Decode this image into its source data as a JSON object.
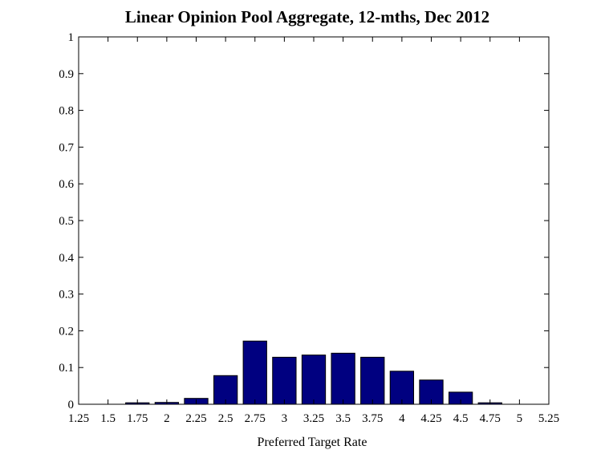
{
  "chart_data": {
    "type": "bar",
    "title": "Linear Opinion Pool Aggregate, 12-mths, Dec 2012",
    "xlabel": "Preferred Target Rate",
    "ylabel": "",
    "xlim": [
      1.25,
      5.25
    ],
    "ylim": [
      0,
      1
    ],
    "x_ticks": [
      "1.25",
      "1.5",
      "1.75",
      "2",
      "2.25",
      "2.5",
      "2.75",
      "3",
      "3.25",
      "3.5",
      "3.75",
      "4",
      "4.25",
      "4.5",
      "4.75",
      "5",
      "5.25"
    ],
    "y_ticks": [
      "0",
      "0.1",
      "0.2",
      "0.3",
      "0.4",
      "0.5",
      "0.6",
      "0.7",
      "0.8",
      "0.9",
      "1"
    ],
    "categories": [
      1.75,
      2,
      2.25,
      2.5,
      2.75,
      3,
      3.25,
      3.5,
      3.75,
      4,
      4.25,
      4.5,
      4.75
    ],
    "values": [
      0.004,
      0.005,
      0.016,
      0.078,
      0.172,
      0.128,
      0.134,
      0.139,
      0.128,
      0.09,
      0.066,
      0.033,
      0.004
    ],
    "bar_color": "#000080",
    "bar_edge_color": "#000000",
    "grid": false,
    "legend": "none"
  }
}
